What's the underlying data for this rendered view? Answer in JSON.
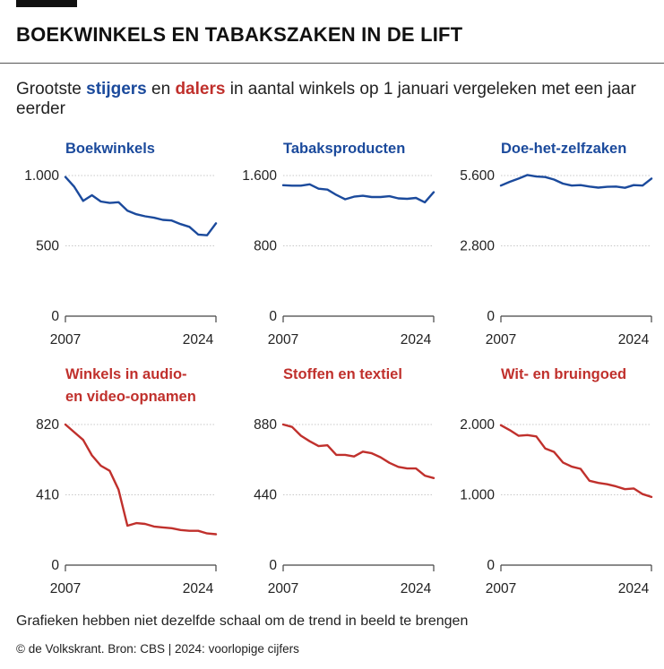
{
  "header": {
    "title": "BOEKWINKELS EN TABAKSZAKEN IN DE LIFT",
    "subtitle_pre": "Grootste ",
    "subtitle_risers": "stijgers",
    "subtitle_mid": " en ",
    "subtitle_fallers": "dalers",
    "subtitle_post": " in aantal winkels op 1 januari vergeleken met een jaar eerder"
  },
  "colors": {
    "risers": "#1b4a9c",
    "fallers": "#c0302c"
  },
  "chart_data": [
    {
      "type": "line",
      "title": [
        "Boekwinkels"
      ],
      "color": "risers",
      "yticks": [
        0,
        500,
        1000
      ],
      "ytick_labels": [
        "0",
        "500",
        "1.000"
      ],
      "ylim": [
        0,
        1000
      ],
      "x_labels": [
        "2007",
        "2024"
      ],
      "x": [
        2007,
        2008,
        2009,
        2010,
        2011,
        2012,
        2013,
        2014,
        2015,
        2016,
        2017,
        2018,
        2019,
        2020,
        2021,
        2022,
        2023,
        2024
      ],
      "values": [
        990,
        920,
        820,
        860,
        815,
        805,
        810,
        750,
        725,
        710,
        700,
        685,
        680,
        655,
        635,
        580,
        575,
        660
      ]
    },
    {
      "type": "line",
      "title": [
        "Tabaksproducten"
      ],
      "color": "risers",
      "yticks": [
        0,
        800,
        1600
      ],
      "ytick_labels": [
        "0",
        "800",
        "1.600"
      ],
      "ylim": [
        0,
        1600
      ],
      "x_labels": [
        "2007",
        "2024"
      ],
      "x": [
        2007,
        2008,
        2009,
        2010,
        2011,
        2012,
        2013,
        2014,
        2015,
        2016,
        2017,
        2018,
        2019,
        2020,
        2021,
        2022,
        2023,
        2024
      ],
      "values": [
        1490,
        1485,
        1485,
        1500,
        1450,
        1440,
        1380,
        1330,
        1360,
        1370,
        1355,
        1355,
        1365,
        1340,
        1335,
        1345,
        1295,
        1410
      ]
    },
    {
      "type": "line",
      "title": [
        "Doe-het-zelfzaken"
      ],
      "color": "risers",
      "yticks": [
        0,
        2800,
        5600
      ],
      "ytick_labels": [
        "0",
        "2.800",
        "5.600"
      ],
      "ylim": [
        0,
        5600
      ],
      "x_labels": [
        "2007",
        "2024"
      ],
      "x": [
        2007,
        2008,
        2009,
        2010,
        2011,
        2012,
        2013,
        2014,
        2015,
        2016,
        2017,
        2018,
        2019,
        2020,
        2021,
        2022,
        2023,
        2024
      ],
      "values": [
        5200,
        5350,
        5480,
        5620,
        5560,
        5540,
        5440,
        5280,
        5200,
        5220,
        5160,
        5120,
        5150,
        5160,
        5110,
        5220,
        5200,
        5480
      ]
    },
    {
      "type": "line",
      "title": [
        "Winkels in audio-",
        "en video-opnamen"
      ],
      "color": "fallers",
      "yticks": [
        0,
        410,
        820
      ],
      "ytick_labels": [
        "0",
        "410",
        "820"
      ],
      "ylim": [
        0,
        820
      ],
      "x_labels": [
        "2007",
        "2024"
      ],
      "x": [
        2007,
        2008,
        2009,
        2010,
        2011,
        2012,
        2013,
        2014,
        2015,
        2016,
        2017,
        2018,
        2019,
        2020,
        2021,
        2022,
        2023,
        2024
      ],
      "values": [
        820,
        775,
        730,
        640,
        580,
        550,
        440,
        230,
        245,
        240,
        225,
        220,
        215,
        205,
        200,
        200,
        185,
        180
      ]
    },
    {
      "type": "line",
      "title": [
        "Stoffen en textiel"
      ],
      "color": "fallers",
      "yticks": [
        0,
        440,
        880
      ],
      "ytick_labels": [
        "0",
        "440",
        "880"
      ],
      "ylim": [
        0,
        880
      ],
      "x_labels": [
        "2007",
        "2024"
      ],
      "x": [
        2007,
        2008,
        2009,
        2010,
        2011,
        2012,
        2013,
        2014,
        2015,
        2016,
        2017,
        2018,
        2019,
        2020,
        2021,
        2022,
        2023,
        2024
      ],
      "values": [
        880,
        865,
        810,
        775,
        745,
        750,
        690,
        690,
        680,
        710,
        700,
        675,
        640,
        615,
        605,
        605,
        560,
        545
      ]
    },
    {
      "type": "line",
      "title": [
        "Wit- en bruingoed"
      ],
      "color": "fallers",
      "yticks": [
        0,
        1000,
        2000
      ],
      "ytick_labels": [
        "0",
        "1.000",
        "2.000"
      ],
      "ylim": [
        0,
        2000
      ],
      "x_labels": [
        "2007",
        "2024"
      ],
      "x": [
        2007,
        2008,
        2009,
        2010,
        2011,
        2012,
        2013,
        2014,
        2015,
        2016,
        2017,
        2018,
        2019,
        2020,
        2021,
        2022,
        2023,
        2024
      ],
      "values": [
        1990,
        1920,
        1840,
        1850,
        1830,
        1660,
        1610,
        1460,
        1400,
        1370,
        1200,
        1170,
        1150,
        1120,
        1080,
        1090,
        1010,
        970
      ]
    }
  ],
  "footer": {
    "note": "Grafieken hebben niet dezelfde schaal om de trend in beeld te brengen",
    "credit": "© de Volkskrant. Bron: CBS | 2024: voorlopige cijfers"
  }
}
